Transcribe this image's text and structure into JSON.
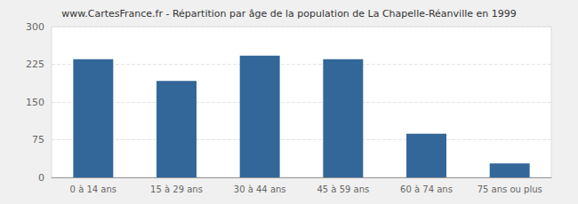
{
  "chart_data": {
    "type": "bar",
    "title": "www.CartesFrance.fr - Répartition par âge de la population de La Chapelle-Réanville en 1999",
    "categories": [
      "0 à 14 ans",
      "15 à 29 ans",
      "30 à 44 ans",
      "45 à 59 ans",
      "60 à 74 ans",
      "75 ans ou plus"
    ],
    "values": [
      235,
      192,
      242,
      235,
      87,
      28
    ],
    "color": "#336699",
    "ylim": [
      0,
      300
    ],
    "yticks": [
      0,
      75,
      150,
      225,
      300
    ],
    "grid": true
  }
}
